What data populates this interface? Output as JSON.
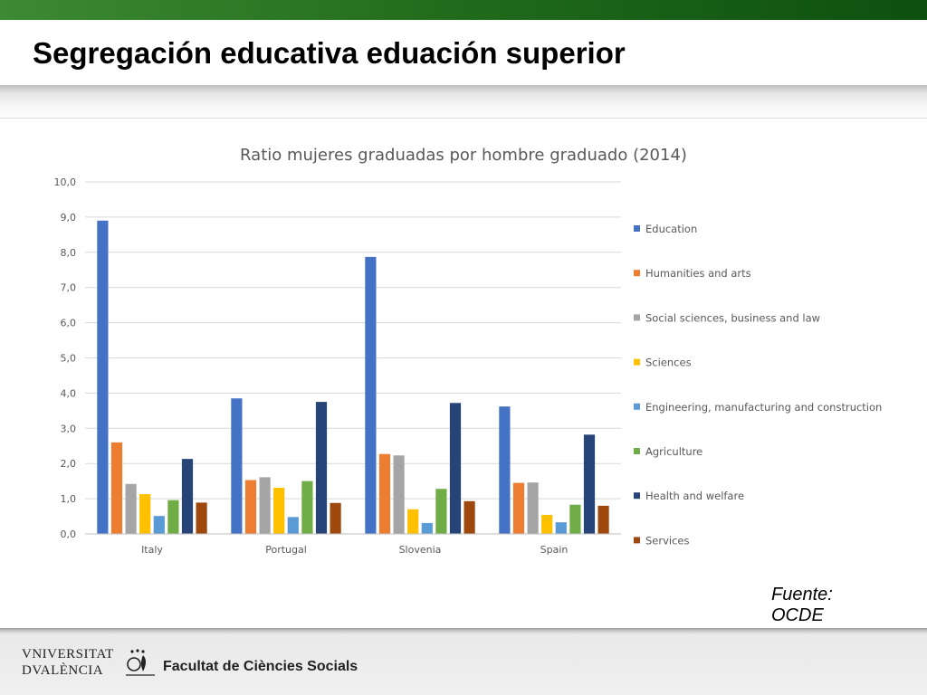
{
  "slide": {
    "title": "Segregación educativa eduación superior",
    "source_line1": "Fuente:",
    "source_line2": "OCDE"
  },
  "footer": {
    "university_line1": "VNIVERSITAT",
    "university_line2": "DVALÈNCIA",
    "faculty": "Facultat de Ciències Socials"
  },
  "colors": {
    "topbar": "#1f6b1b",
    "gridline": "#d9d9d9",
    "axis_text": "#595959",
    "title_text": "#595959"
  },
  "chart_data": {
    "type": "bar",
    "title": "Ratio mujeres graduadas por hombre graduado (2014)",
    "xlabel": "",
    "ylabel": "",
    "ylim": [
      0,
      10
    ],
    "yticks": [
      "0,0",
      "1,0",
      "2,0",
      "3,0",
      "4,0",
      "5,0",
      "6,0",
      "7,0",
      "8,0",
      "9,0",
      "10,0"
    ],
    "grid": true,
    "legend_position": "right",
    "categories": [
      "Italy",
      "Portugal",
      "Slovenia",
      "Spain"
    ],
    "series": [
      {
        "name": "Education",
        "color": "#4472c4",
        "values": [
          8.9,
          3.85,
          7.87,
          3.62
        ]
      },
      {
        "name": "Humanities and arts",
        "color": "#ed7d31",
        "values": [
          2.6,
          1.53,
          2.27,
          1.45
        ]
      },
      {
        "name": "Social sciences, business and law",
        "color": "#a5a5a5",
        "values": [
          1.42,
          1.61,
          2.23,
          1.46
        ]
      },
      {
        "name": "Sciences",
        "color": "#ffc000",
        "values": [
          1.13,
          1.31,
          0.7,
          0.54
        ]
      },
      {
        "name": "Engineering, manufacturing and construction",
        "color": "#5b9bd5",
        "values": [
          0.51,
          0.48,
          0.31,
          0.33
        ]
      },
      {
        "name": "Agriculture",
        "color": "#70ad47",
        "values": [
          0.96,
          1.5,
          1.28,
          0.83
        ]
      },
      {
        "name": "Health and welfare",
        "color": "#264478",
        "values": [
          2.13,
          3.75,
          3.72,
          2.82
        ]
      },
      {
        "name": "Services",
        "color": "#9e480e",
        "values": [
          0.89,
          0.88,
          0.93,
          0.8
        ]
      }
    ]
  }
}
